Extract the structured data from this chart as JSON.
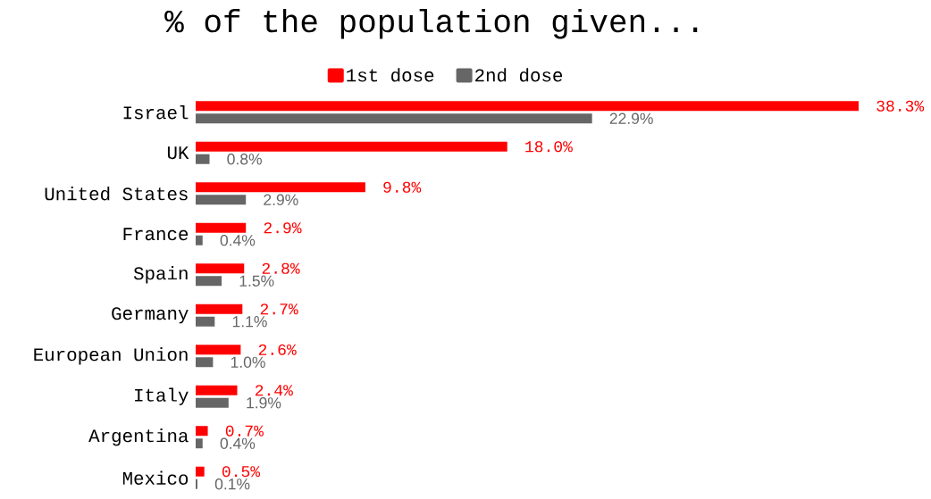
{
  "chart_data": {
    "type": "bar",
    "orientation": "horizontal",
    "title": "% of the population given...",
    "legend": "top",
    "tick_labels": "y",
    "categories": [
      "Israel",
      "UK",
      "United States",
      "France",
      "Spain",
      "Germany",
      "European Union",
      "Italy",
      "Argentina",
      "Mexico"
    ],
    "series": [
      {
        "name": "1st dose",
        "color": "#ff0000",
        "values": [
          38.3,
          18.0,
          9.8,
          2.9,
          2.8,
          2.7,
          2.6,
          2.4,
          0.7,
          0.5
        ],
        "value_labels": [
          "38.3%",
          "18.0%",
          "9.8%",
          "2.9%",
          "2.8%",
          "2.7%",
          "2.6%",
          "2.4%",
          "0.7%",
          "0.5%"
        ]
      },
      {
        "name": "2nd dose",
        "color": "#666666",
        "values": [
          22.9,
          0.8,
          2.9,
          0.4,
          1.5,
          1.1,
          1.0,
          1.9,
          0.4,
          0.1
        ],
        "value_labels": [
          "22.9%",
          "0.8%",
          "2.9%",
          "0.4%",
          "1.5%",
          "1.1%",
          "1.0%",
          "1.9%",
          "0.4%",
          "0.1%"
        ]
      }
    ]
  }
}
